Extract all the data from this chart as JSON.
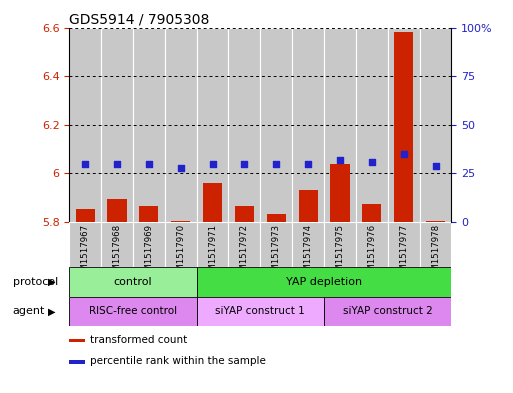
{
  "title": "GDS5914 / 7905308",
  "samples": [
    "GSM1517967",
    "GSM1517968",
    "GSM1517969",
    "GSM1517970",
    "GSM1517971",
    "GSM1517972",
    "GSM1517973",
    "GSM1517974",
    "GSM1517975",
    "GSM1517976",
    "GSM1517977",
    "GSM1517978"
  ],
  "transformed_count": [
    5.855,
    5.895,
    5.865,
    5.805,
    5.96,
    5.865,
    5.835,
    5.93,
    6.04,
    5.875,
    6.58,
    5.805
  ],
  "percentile_rank": [
    30,
    30,
    30,
    28,
    30,
    30,
    30,
    30,
    32,
    31,
    35,
    29
  ],
  "ylim_left": [
    5.8,
    6.6
  ],
  "ylim_right": [
    0,
    100
  ],
  "yticks_left": [
    5.8,
    6.0,
    6.2,
    6.4,
    6.6
  ],
  "ytick_labels_left": [
    "5.8",
    "6",
    "6.2",
    "6.4",
    "6.6"
  ],
  "yticks_right": [
    0,
    25,
    50,
    75,
    100
  ],
  "ytick_labels_right": [
    "0",
    "25",
    "50",
    "75",
    "100%"
  ],
  "bar_color": "#cc2200",
  "dot_color": "#2222cc",
  "bar_width": 0.6,
  "col_bg_color": "#c8c8c8",
  "plot_bg_color": "#ffffff",
  "protocol_groups": [
    {
      "label": "control",
      "start": 0,
      "end": 3,
      "color": "#99ee99"
    },
    {
      "label": "YAP depletion",
      "start": 4,
      "end": 11,
      "color": "#44dd44"
    }
  ],
  "agent_groups": [
    {
      "label": "RISC-free control",
      "start": 0,
      "end": 3,
      "color": "#dd88ee"
    },
    {
      "label": "siYAP construct 1",
      "start": 4,
      "end": 7,
      "color": "#eeaaff"
    },
    {
      "label": "siYAP construct 2",
      "start": 8,
      "end": 11,
      "color": "#dd88ee"
    }
  ],
  "legend_items": [
    {
      "label": "transformed count",
      "color": "#cc2200"
    },
    {
      "label": "percentile rank within the sample",
      "color": "#2222cc"
    }
  ],
  "xlabel_protocol": "protocol",
  "xlabel_agent": "agent",
  "background_color": "#ffffff",
  "title_fontsize": 10,
  "tick_fontsize": 8,
  "label_fontsize": 8,
  "bar_label_fontsize": 7
}
